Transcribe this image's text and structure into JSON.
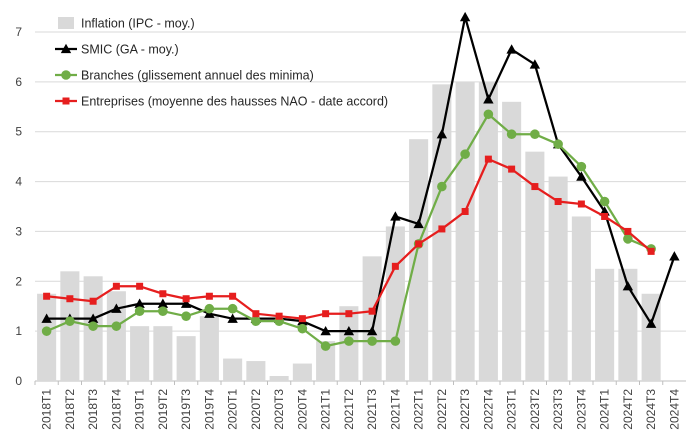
{
  "chart_data": {
    "type": "bar+line",
    "categories": [
      "2018T1",
      "2018T2",
      "2018T3",
      "2018T4",
      "2019T1",
      "2019T2",
      "2019T3",
      "2019T4",
      "2020T1",
      "2020T2",
      "2020T3",
      "2020T4",
      "2021T1",
      "2021T2",
      "2021T3",
      "2021T4",
      "2022T1",
      "2022T2",
      "2022T3",
      "2022T4",
      "2023T1",
      "2023T2",
      "2023T3",
      "2023T4",
      "2024T1",
      "2024T2",
      "2024T3",
      "2024T4"
    ],
    "ylim": [
      0,
      7
    ],
    "yticks": [
      "0",
      "1",
      "2",
      "3",
      "4",
      "5",
      "6",
      "7"
    ],
    "grid": true,
    "legend_position": "top-left",
    "series": [
      {
        "name": "Inflation (IPC - moy.)",
        "kind": "bar",
        "color": "#d9d9d9",
        "values": [
          1.75,
          2.2,
          2.1,
          1.8,
          1.1,
          1.1,
          0.9,
          1.3,
          0.45,
          0.4,
          0.1,
          0.35,
          0.8,
          1.5,
          2.5,
          3.1,
          4.85,
          5.95,
          6.0,
          6.0,
          5.6,
          4.6,
          4.1,
          3.3,
          2.25,
          2.25,
          1.75,
          null
        ]
      },
      {
        "name": "SMIC (GA - moy.)",
        "kind": "line",
        "marker": "triangle",
        "color": "#000000",
        "values": [
          1.25,
          1.25,
          1.25,
          1.45,
          1.55,
          1.55,
          1.55,
          1.35,
          1.25,
          1.25,
          1.25,
          1.2,
          1.0,
          1.0,
          1.0,
          3.3,
          3.15,
          4.95,
          7.3,
          5.65,
          6.65,
          6.35,
          4.75,
          4.1,
          3.4,
          1.9,
          1.15,
          2.5
        ]
      },
      {
        "name": "Branches (glissement annuel des minima)",
        "kind": "line",
        "marker": "circle",
        "color": "#70ad47",
        "values": [
          1.0,
          1.2,
          1.1,
          1.1,
          1.4,
          1.4,
          1.3,
          1.45,
          1.45,
          1.2,
          1.2,
          1.05,
          0.7,
          0.8,
          0.8,
          0.8,
          2.75,
          3.9,
          4.55,
          5.35,
          4.95,
          4.95,
          4.75,
          4.3,
          3.6,
          2.85,
          2.65,
          null
        ]
      },
      {
        "name": "Entreprises (moyenne des hausses NAO - date accord)",
        "kind": "line",
        "marker": "square",
        "color": "#e61e1e",
        "values": [
          1.7,
          1.65,
          1.6,
          1.9,
          1.9,
          1.75,
          1.65,
          1.7,
          1.7,
          1.35,
          1.3,
          1.25,
          1.35,
          1.35,
          1.4,
          2.3,
          2.75,
          3.05,
          3.4,
          4.45,
          4.25,
          3.9,
          3.6,
          3.55,
          3.3,
          3.0,
          2.6,
          null
        ]
      }
    ]
  }
}
